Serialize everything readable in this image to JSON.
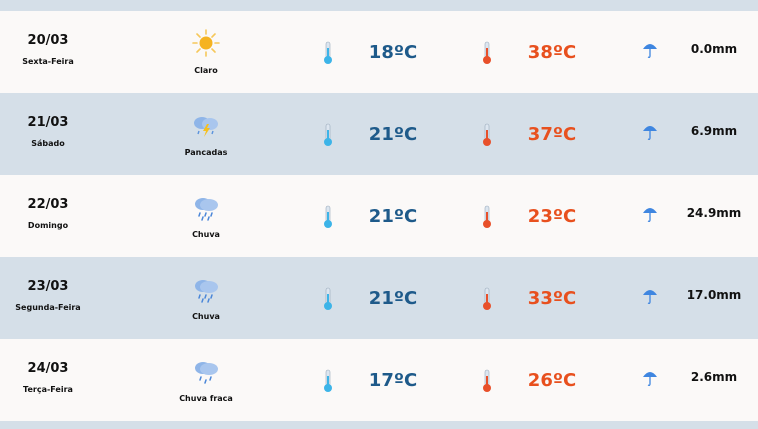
{
  "colors": {
    "row_light": "#fbf9f8",
    "row_dark": "#d5dfe8",
    "min_temp": "#1e5a8a",
    "max_temp": "#e8501e"
  },
  "days": [
    {
      "date": "20/03",
      "weekday": "Sexta-Feira",
      "condition": "Claro",
      "icon": "sun-icon",
      "min": "18ºC",
      "max": "38ºC",
      "precip": "0.0mm"
    },
    {
      "date": "21/03",
      "weekday": "Sábado",
      "condition": "Pancadas",
      "icon": "thunderstorm-icon",
      "min": "21ºC",
      "max": "37ºC",
      "precip": "6.9mm"
    },
    {
      "date": "22/03",
      "weekday": "Domingo",
      "condition": "Chuva",
      "icon": "rain-icon",
      "min": "21ºC",
      "max": "23ºC",
      "precip": "24.9mm"
    },
    {
      "date": "23/03",
      "weekday": "Segunda-Feira",
      "condition": "Chuva",
      "icon": "rain-icon",
      "min": "21ºC",
      "max": "33ºC",
      "precip": "17.0mm"
    },
    {
      "date": "24/03",
      "weekday": "Terça-Feira",
      "condition": "Chuva fraca",
      "icon": "light-rain-icon",
      "min": "17ºC",
      "max": "26ºC",
      "precip": "2.6mm"
    }
  ]
}
